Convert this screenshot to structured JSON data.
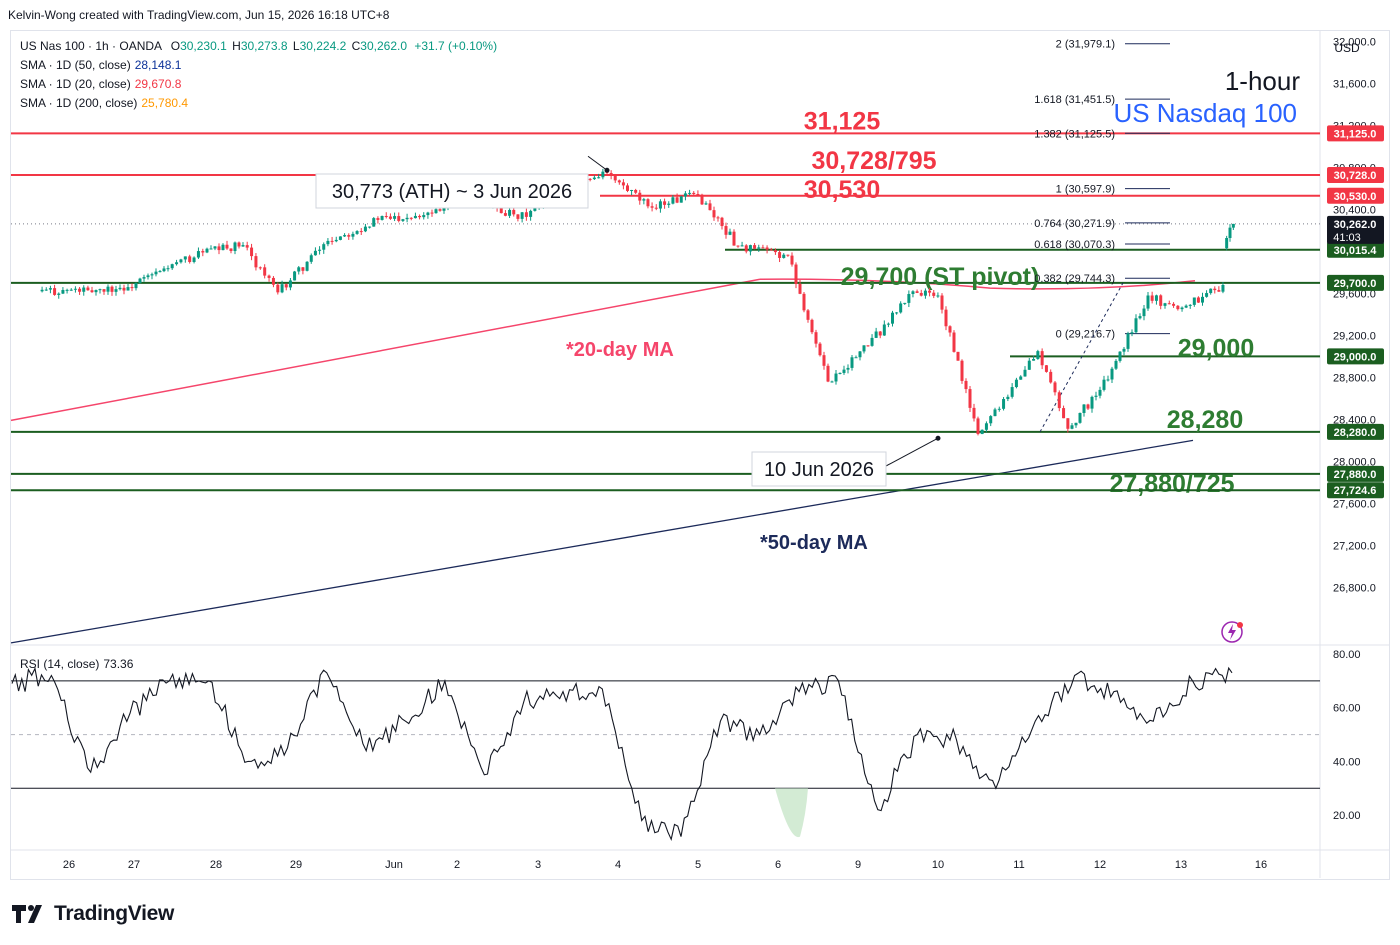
{
  "header": {
    "creator": "Kelvin-Wong created with TradingView.com, Jun 15, 2026 16:18 UTC+8"
  },
  "legend": {
    "symbol": "US Nas 100 · 1h · OANDA",
    "ohlc": {
      "o_label": "O",
      "o": "30,230.1",
      "h_label": "H",
      "h": "30,273.8",
      "l_label": "L",
      "l": "30,224.2",
      "c_label": "C",
      "c": "30,262.0",
      "chg": "+31.7 (+0.10%)"
    },
    "sma50": {
      "label": "SMA · 1D (50, close)",
      "value": "28,148.1",
      "color": "#0c3299"
    },
    "sma20": {
      "label": "SMA · 1D (20, close)",
      "value": "29,670.8",
      "color": "#f23645"
    },
    "sma200": {
      "label": "SMA · 1D (200, close)",
      "value": "25,780.4",
      "color": "#ff9800"
    },
    "rsi": {
      "label": "RSI (14, close)",
      "value": "73.36"
    }
  },
  "currency": "USD",
  "titles": {
    "timeframe": "1-hour",
    "instrument": "US Nasdaq 100"
  },
  "colors": {
    "up": "#089981",
    "down": "#f23645",
    "resistance": "#f23645",
    "support": "#1b5e20",
    "ma20": "#f5456b",
    "ma50": "#1c2a5a",
    "instrument": "#2962ff",
    "pivot_label_text": "#2e7d32"
  },
  "annotations": {
    "ath": "30,773 (ATH) ~ 3 Jun 2026",
    "low": "10 Jun 2026",
    "ma20": "*20-day MA",
    "ma50": "*50-day MA"
  },
  "lines": [
    {
      "id": "r31125",
      "price": 31125,
      "label": "31,125",
      "tag": "31,125.0",
      "kind": "resistance"
    },
    {
      "id": "r30728",
      "price": 30728,
      "label": "30,728/795",
      "tag": "30,728.0",
      "kind": "resistance"
    },
    {
      "id": "r30530",
      "price": 30530,
      "label": "30,530",
      "tag": "30,530.0",
      "kind": "resistance"
    },
    {
      "id": "s30015",
      "price": 30015.4,
      "label": "",
      "tag": "30,015.4",
      "kind": "support"
    },
    {
      "id": "s29700",
      "price": 29700,
      "label": "29,700 (ST pivot)",
      "tag": "29,700.0",
      "kind": "support"
    },
    {
      "id": "s29000",
      "price": 29000,
      "label": "29,000",
      "tag": "29,000.0",
      "kind": "support"
    },
    {
      "id": "s28280",
      "price": 28280,
      "label": "28,280",
      "tag": "28,280.0",
      "kind": "support"
    },
    {
      "id": "s27880",
      "price": 27880,
      "label": "27,880/725",
      "tag": "27,880.0",
      "kind": "support"
    },
    {
      "id": "s27724",
      "price": 27724.6,
      "label": "",
      "tag": "27,724.6",
      "kind": "support"
    }
  ],
  "fib_levels": [
    {
      "ratio": "2",
      "value": "31,979.1",
      "price": 31979.1
    },
    {
      "ratio": "1.618",
      "value": "31,451.5",
      "price": 31451.5
    },
    {
      "ratio": "1.382",
      "value": "31,125.5",
      "price": 31125.5
    },
    {
      "ratio": "1",
      "value": "30,597.9",
      "price": 30597.9
    },
    {
      "ratio": "0.764",
      "value": "30,271.9",
      "price": 30271.9
    },
    {
      "ratio": "0.618",
      "value": "30,070.3",
      "price": 30070.3
    },
    {
      "ratio": "0.382",
      "value": "29,744.3",
      "price": 29744.3
    },
    {
      "ratio": "0",
      "value": "29,216.7",
      "price": 29216.7
    }
  ],
  "last_price": {
    "value": "30,262.0",
    "countdown": "41:03"
  },
  "chart_data": {
    "type": "line",
    "price_axis": {
      "ticks": [
        32000,
        31600,
        31200,
        30800,
        30400,
        29600,
        29200,
        28800,
        28400,
        28000,
        27600,
        27200,
        26800
      ],
      "tick_labels": [
        "32,000.0",
        "31,600.0",
        "31,200.0",
        "30,800.0",
        "30,400.0",
        "29,600.0",
        "29,200.0",
        "28,800.0",
        "28,400.0",
        "28,000.0",
        "27,600.0",
        "27,200.0",
        "26,800.0"
      ],
      "ylim": [
        26250,
        32100
      ]
    },
    "rsi_axis": {
      "ticks": [
        80,
        60,
        40,
        20
      ],
      "tick_labels": [
        "80.00",
        "60.00",
        "40.00",
        "20.00"
      ],
      "ylim": [
        7,
        83
      ],
      "overbought": 70,
      "oversold": 30,
      "mid": 50
    },
    "x_axis": {
      "labels": [
        "26",
        "27",
        "28",
        "29",
        "Jun",
        "2",
        "3",
        "4",
        "5",
        "6",
        "9",
        "10",
        "11",
        "12",
        "13",
        "16"
      ]
    },
    "price_series": [
      {
        "session": "26",
        "open": 29620,
        "close": 29630
      },
      {
        "session": "26b",
        "open": 29630,
        "close": 29660
      },
      {
        "session": "27",
        "open": 29660,
        "close": 29840
      },
      {
        "session": "27b",
        "open": 29840,
        "close": 29990
      },
      {
        "session": "28",
        "open": 29990,
        "close": 30060
      },
      {
        "session": "28b",
        "open": 30060,
        "close": 29610
      },
      {
        "session": "29",
        "open": 29610,
        "close": 30100
      },
      {
        "session": "29b",
        "open": 30100,
        "close": 30300
      },
      {
        "session": "Jun",
        "open": 30300,
        "close": 30370
      },
      {
        "session": "2",
        "open": 30370,
        "close": 30560
      },
      {
        "session": "2b",
        "open": 30560,
        "close": 30310
      },
      {
        "session": "3",
        "open": 30310,
        "close": 30760
      },
      {
        "session": "4",
        "open": 30760,
        "close": 30430
      },
      {
        "session": "4b",
        "open": 30430,
        "close": 30540
      },
      {
        "session": "5",
        "open": 30540,
        "close": 30050
      },
      {
        "session": "5b",
        "open": 30050,
        "close": 29960
      },
      {
        "session": "6",
        "open": 29960,
        "close": 28760
      },
      {
        "session": "6b",
        "open": 28760,
        "close": 29100
      },
      {
        "session": "9",
        "open": 29100,
        "close": 29620
      },
      {
        "session": "9b",
        "open": 29620,
        "close": 29580
      },
      {
        "session": "10",
        "open": 29580,
        "close": 28260
      },
      {
        "session": "10b",
        "open": 28260,
        "close": 29050
      },
      {
        "session": "11",
        "open": 29050,
        "close": 28310
      },
      {
        "session": "11b",
        "open": 28310,
        "close": 28780
      },
      {
        "session": "12",
        "open": 28780,
        "close": 29580
      },
      {
        "session": "12b",
        "open": 29580,
        "close": 29450
      },
      {
        "session": "13",
        "open": 29450,
        "close": 29680
      },
      {
        "session": "15",
        "open": 30030,
        "close": 30262
      }
    ],
    "rsi_series": [
      69,
      72,
      36,
      58,
      70,
      70,
      40,
      45,
      73,
      44,
      55,
      70,
      35,
      62,
      66,
      67,
      18,
      12,
      55,
      50,
      66,
      70,
      22,
      50,
      48,
      30,
      55,
      72,
      66,
      55,
      70,
      73
    ]
  }
}
